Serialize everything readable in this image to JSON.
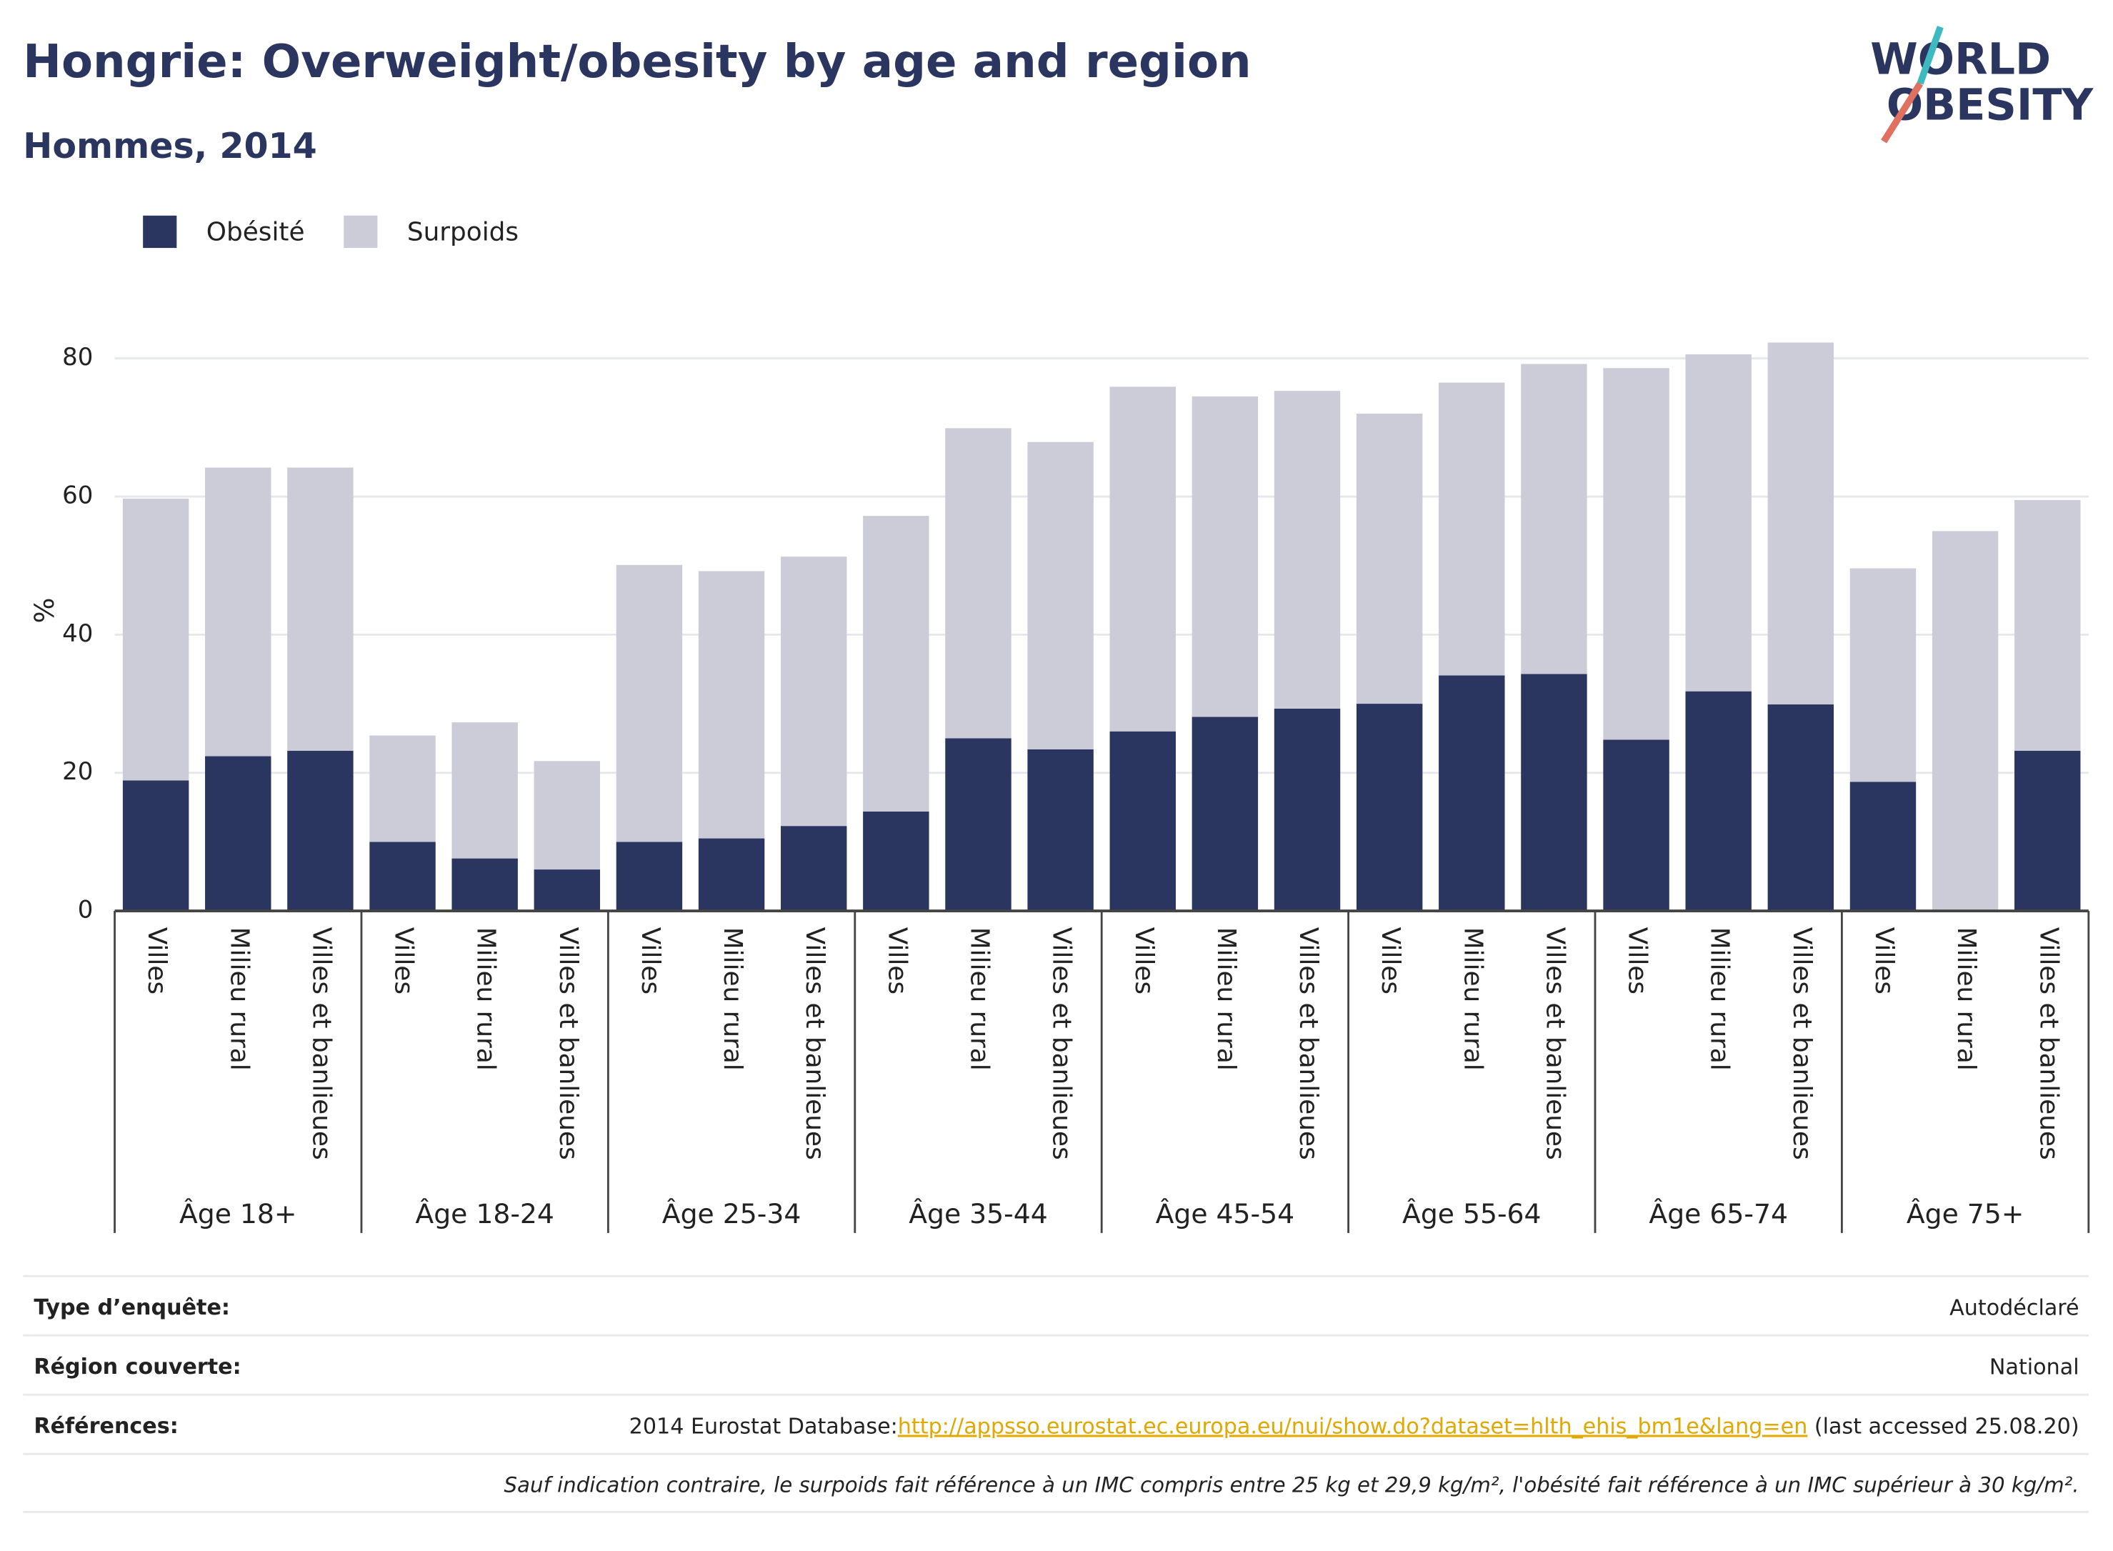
{
  "chart_data": {
    "type": "stacked_bar",
    "title": "Hongrie: Overweight/obesity by age and region",
    "subtitle": "Hommes, 2014",
    "logo": {
      "line1": "WORLD",
      "line2": "OBESITY"
    },
    "y_label": "%",
    "categories": [
      "Villes",
      "Milieu rural",
      "Villes et banlieues",
      "Villes",
      "Milieu rural",
      "Villes et banlieues",
      "Villes",
      "Milieu rural",
      "Villes et banlieues",
      "Villes",
      "Milieu rural",
      "Villes et banlieues",
      "Villes",
      "Milieu rural",
      "Villes et banlieues",
      "Villes",
      "Milieu rural",
      "Villes et banlieues",
      "Villes",
      "Milieu rural",
      "Villes et banlieues",
      "Villes",
      "Milieu rural",
      "Villes et banlieues"
    ],
    "groups": [
      "Âge 18+",
      "Âge 18-24",
      "Âge 25-34",
      "Âge 35-44",
      "Âge 45-54",
      "Âge 55-64",
      "Âge 65-74",
      "Âge 75+"
    ],
    "series": [
      {
        "name": "Obésité",
        "color": "#2a3560",
        "values": [
          18.9,
          22.4,
          23.2,
          10.0,
          7.6,
          6.0,
          10.0,
          10.5,
          12.3,
          14.4,
          25.0,
          23.4,
          26.0,
          28.1,
          29.3,
          30.0,
          34.1,
          34.3,
          24.8,
          31.8,
          29.9,
          18.7,
          0,
          23.2
        ]
      },
      {
        "name": "Surpoids",
        "color": "#cbccd8",
        "values": [
          40.8,
          41.8,
          41.0,
          15.4,
          19.7,
          15.7,
          40.1,
          38.7,
          39.0,
          42.8,
          44.9,
          44.5,
          49.9,
          46.4,
          46.0,
          42.0,
          42.4,
          44.9,
          53.8,
          48.8,
          52.4,
          30.9,
          55.0,
          36.3
        ]
      }
    ],
    "ylim": [
      0,
      82.9
    ],
    "yticks": [
      0,
      20,
      40,
      60,
      80
    ],
    "grid": true,
    "legend": "top-left"
  },
  "footer": {
    "rows": [
      {
        "label": "Type d’enquête:",
        "value": "Autodéclaré"
      },
      {
        "label": "Région couverte:",
        "value": "National"
      },
      {
        "label": "Références:",
        "value": "2014 Eurostat Database:",
        "link": "http://appsso.eurostat.ec.europa.eu/nui/show.do?dataset=hlth_ehis_bm1e&lang=en",
        "suffix": " (last accessed 25.08.20)"
      }
    ],
    "note": "Sauf indication contraire, le surpoids fait référence à un IMC compris entre 25 kg et 29,9 kg/m², l'obésité fait référence à un IMC supérieur à 30 kg/m²."
  }
}
